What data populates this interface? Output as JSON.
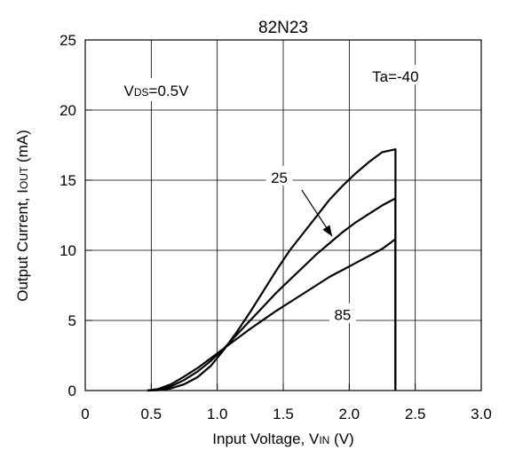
{
  "chart_data": {
    "type": "line",
    "title": "82N23",
    "xlabel": "Input Voltage, V",
    "xlabel_sub": "IN",
    "xlabel_unit": " (V)",
    "ylabel": "Output Current, I",
    "ylabel_sub": "OUT",
    "ylabel_unit": " (mA)",
    "xlim": [
      0,
      3.0
    ],
    "ylim": [
      0,
      25
    ],
    "x_ticks": [
      "0",
      "0.5",
      "1.0",
      "1.5",
      "2.0",
      "2.5",
      "3.0"
    ],
    "y_ticks": [
      "0",
      "5",
      "10",
      "15",
      "20",
      "25"
    ],
    "grid": true,
    "condition_label": {
      "prefix": "V",
      "sub": "DS",
      "suffix": "=0.5V"
    },
    "series": [
      {
        "name": "Ta=-40",
        "x": [
          0.47,
          0.55,
          0.65,
          0.75,
          0.85,
          0.95,
          1.05,
          1.15,
          1.25,
          1.35,
          1.45,
          1.55,
          1.65,
          1.75,
          1.85,
          1.95,
          2.05,
          2.15,
          2.25,
          2.35,
          2.35
        ],
        "y": [
          0,
          0.02,
          0.15,
          0.45,
          0.95,
          1.75,
          2.9,
          4.2,
          5.6,
          7.1,
          8.6,
          10.0,
          11.2,
          12.4,
          13.6,
          14.6,
          15.5,
          16.3,
          17.0,
          17.2,
          0
        ]
      },
      {
        "name": "25",
        "x": [
          0.47,
          0.55,
          0.65,
          0.75,
          0.85,
          0.95,
          1.05,
          1.15,
          1.25,
          1.35,
          1.45,
          1.55,
          1.65,
          1.75,
          1.85,
          1.95,
          2.05,
          2.15,
          2.25,
          2.35,
          2.35
        ],
        "y": [
          0,
          0.06,
          0.3,
          0.75,
          1.35,
          2.1,
          3.0,
          4.0,
          5.0,
          6.0,
          7.0,
          7.9,
          8.8,
          9.7,
          10.5,
          11.3,
          12.0,
          12.6,
          13.2,
          13.7,
          0
        ]
      },
      {
        "name": "85",
        "x": [
          0.47,
          0.55,
          0.65,
          0.75,
          0.85,
          0.95,
          1.05,
          1.15,
          1.25,
          1.35,
          1.45,
          1.55,
          1.65,
          1.75,
          1.85,
          1.95,
          2.05,
          2.15,
          2.25,
          2.35,
          2.35
        ],
        "y": [
          0,
          0.1,
          0.45,
          1.0,
          1.6,
          2.3,
          3.0,
          3.7,
          4.4,
          5.05,
          5.7,
          6.3,
          6.9,
          7.5,
          8.1,
          8.6,
          9.1,
          9.6,
          10.1,
          10.8,
          0
        ]
      }
    ],
    "annotations": [
      {
        "text": "Ta=-40",
        "x": 2.35,
        "y": 22.4
      },
      {
        "text": "25",
        "x": 1.47,
        "y": 15.2
      },
      {
        "text": "85",
        "x": 1.95,
        "y": 5.4
      }
    ],
    "arrow": {
      "x1": 1.64,
      "y1": 14.3,
      "x2": 1.87,
      "y2": 11.0
    }
  }
}
